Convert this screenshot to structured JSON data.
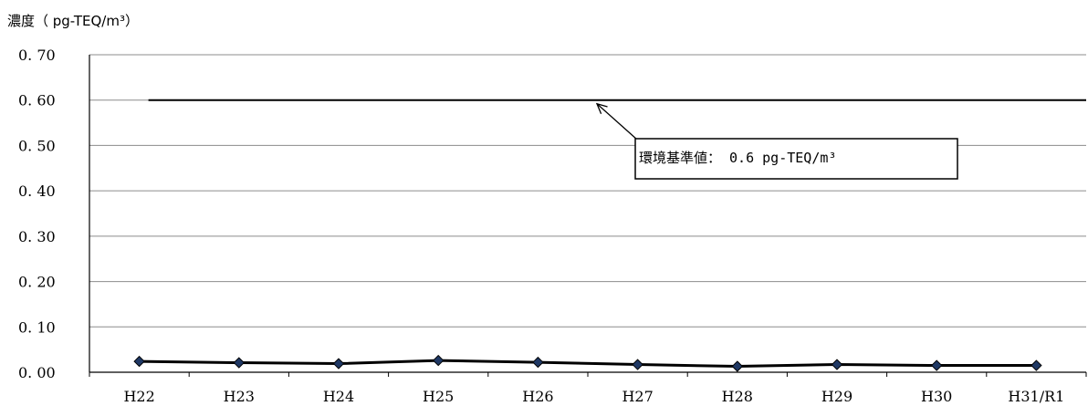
{
  "chart_data": {
    "type": "line",
    "ylabel": "濃度（ pg-TEQ/m³）",
    "categories": [
      "H22",
      "H23",
      "H24",
      "H25",
      "H26",
      "H27",
      "H28",
      "H29",
      "H30",
      "H31/R1"
    ],
    "series": [
      {
        "values": [
          0.024,
          0.021,
          0.019,
          0.026,
          0.022,
          0.017,
          0.013,
          0.017,
          0.015,
          0.015
        ]
      }
    ],
    "reference_line": {
      "value": 0.6,
      "label": "環境基準値： 0.6 pg-TEQ/m³"
    },
    "ylim": [
      0.0,
      0.7
    ],
    "yticks": [
      "0.00",
      "0.10",
      "0.20",
      "0.30",
      "0.40",
      "0.50",
      "0.60",
      "0.70"
    ],
    "grid": true,
    "line_color": "#000000",
    "marker_color": "#1f3864"
  }
}
